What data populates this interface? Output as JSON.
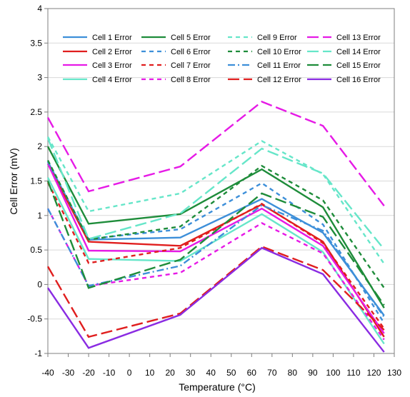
{
  "chart_data": {
    "type": "line",
    "xlabel": "Temperature (°C)",
    "ylabel": "Cell Error (mV)",
    "xlim": [
      -40,
      130
    ],
    "ylim": [
      -1,
      4
    ],
    "xticks": [
      -40,
      -30,
      -20,
      -10,
      0,
      10,
      20,
      30,
      40,
      50,
      60,
      70,
      80,
      90,
      100,
      110,
      120,
      130
    ],
    "yticks": [
      -1,
      -0.5,
      0,
      0.5,
      1,
      1.5,
      2,
      2.5,
      3,
      3.5,
      4
    ],
    "x_tick_labels": [
      "-40",
      "-30",
      "-20",
      "-10",
      "0",
      "10",
      "20",
      "30",
      "40",
      "50",
      "60",
      "70",
      "80",
      "90",
      "100",
      "110",
      "120",
      "130"
    ],
    "y_tick_labels": [
      "-1",
      "-0.5",
      "0",
      "0.5",
      "1",
      "1.5",
      "2",
      "2.5",
      "3",
      "3.5",
      "4"
    ],
    "x": [
      -40,
      -20,
      25,
      65,
      95,
      125
    ],
    "grid": {
      "x": false,
      "y": true
    },
    "legend": {
      "location": "top",
      "columns": 4
    },
    "series": [
      {
        "name": "Cell 1 Error",
        "color": "#3D8FD9",
        "dash": "solid",
        "values": [
          1.78,
          0.65,
          0.68,
          1.24,
          0.75,
          -0.45
        ]
      },
      {
        "name": "Cell 2 Error",
        "color": "#E01E1E",
        "dash": "solid",
        "values": [
          1.75,
          0.62,
          0.56,
          1.16,
          0.62,
          -0.76
        ]
      },
      {
        "name": "Cell 3 Error",
        "color": "#E61AE6",
        "dash": "solid",
        "values": [
          1.75,
          0.49,
          0.48,
          1.1,
          0.56,
          -0.71
        ]
      },
      {
        "name": "Cell 4 Error",
        "color": "#66E6C9",
        "dash": "solid",
        "values": [
          1.55,
          0.37,
          0.34,
          1.02,
          0.47,
          -0.86
        ]
      },
      {
        "name": "Cell 5 Error",
        "color": "#1E8C3A",
        "dash": "solid",
        "values": [
          2.0,
          0.88,
          1.02,
          1.67,
          1.12,
          -0.34
        ]
      },
      {
        "name": "Cell 6 Error",
        "color": "#3D8FD9",
        "dash": "dash",
        "values": [
          1.78,
          0.66,
          0.8,
          1.47,
          0.87,
          -0.56
        ]
      },
      {
        "name": "Cell 7 Error",
        "color": "#E01E1E",
        "dash": "dash",
        "values": [
          1.48,
          0.31,
          0.53,
          1.17,
          0.6,
          -0.64
        ]
      },
      {
        "name": "Cell 8 Error",
        "color": "#E61AE6",
        "dash": "dash",
        "values": [
          1.1,
          -0.02,
          0.17,
          0.89,
          0.45,
          -0.8
        ]
      },
      {
        "name": "Cell 9 Error",
        "color": "#66E6C9",
        "dash": "dash",
        "values": [
          2.14,
          1.06,
          1.32,
          2.08,
          1.6,
          0.3
        ]
      },
      {
        "name": "Cell 10 Error",
        "color": "#1E8C3A",
        "dash": "dash",
        "values": [
          1.8,
          0.65,
          0.84,
          1.72,
          1.22,
          -0.05
        ]
      },
      {
        "name": "Cell 11 Error",
        "color": "#3D8FD9",
        "dash": "dashdot",
        "values": [
          1.1,
          -0.02,
          0.27,
          1.15,
          0.78,
          -0.47
        ]
      },
      {
        "name": "Cell 12 Error",
        "color": "#E01E1E",
        "dash": "longdash",
        "values": [
          0.26,
          -0.76,
          -0.42,
          0.55,
          0.21,
          -0.66
        ]
      },
      {
        "name": "Cell 13 Error",
        "color": "#E61AE6",
        "dash": "longdash",
        "values": [
          2.42,
          1.35,
          1.71,
          2.65,
          2.3,
          1.14
        ]
      },
      {
        "name": "Cell 14 Error",
        "color": "#66E6C9",
        "dash": "longdash",
        "values": [
          2.12,
          0.66,
          1.03,
          1.97,
          1.61,
          0.51
        ]
      },
      {
        "name": "Cell 15 Error",
        "color": "#1E8C3A",
        "dash": "longdash",
        "values": [
          1.5,
          -0.05,
          0.36,
          1.32,
          0.98,
          -0.3
        ]
      },
      {
        "name": "Cell 16 Error",
        "color": "#8A2BE2",
        "dash": "solid",
        "values": [
          -0.05,
          -0.92,
          -0.44,
          0.53,
          0.15,
          -0.98
        ]
      }
    ]
  }
}
